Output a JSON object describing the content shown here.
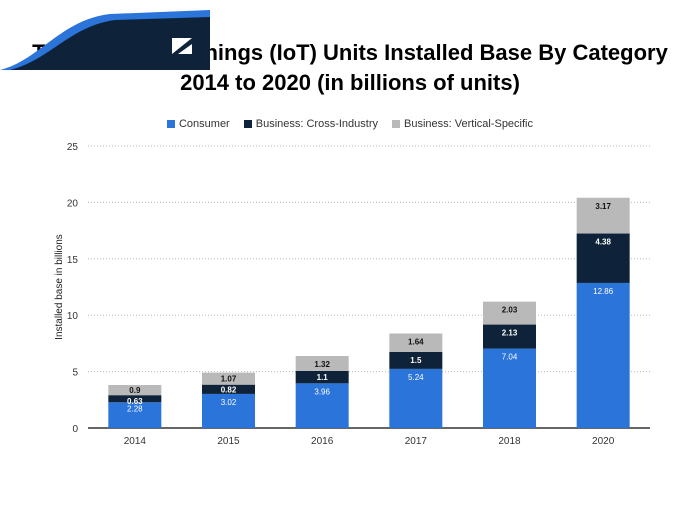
{
  "chart_data": {
    "type": "bar",
    "stacked": true,
    "title": "The Internet of Things (IoT) Units Installed Base By Category",
    "subtitle": "2014 to 2020 (in billions of units)",
    "xlabel": "",
    "ylabel": "Installed base in billions",
    "ylim": [
      0,
      25
    ],
    "yticks": [
      "0",
      "5",
      "10",
      "15",
      "20",
      "25"
    ],
    "grid": true,
    "legend_position": "top-center",
    "categories": [
      "2014",
      "2015",
      "2016",
      "2017",
      "2018",
      "2020"
    ],
    "series": [
      {
        "name": "Consumer",
        "color": "#2b74d9",
        "label_color": "#ffffff",
        "values": [
          2.28,
          3.02,
          3.96,
          5.24,
          7.04,
          12.86
        ],
        "labels": [
          "2.28",
          "3.02",
          "3.96",
          "5.24",
          "7.04",
          "12.86"
        ]
      },
      {
        "name": "Business: Cross-Industry",
        "color": "#0e2339",
        "label_color": "#ffffff",
        "values": [
          0.63,
          0.82,
          1.1,
          1.5,
          2.13,
          4.38
        ],
        "labels": [
          "0.63",
          "0.82",
          "1.1",
          "1.5",
          "2.13",
          "4.38"
        ]
      },
      {
        "name": "Business: Vertical-Specific",
        "color": "#b9b9b9",
        "label_color": "#111111",
        "values": [
          0.9,
          1.07,
          1.32,
          1.64,
          2.03,
          3.17
        ],
        "labels": [
          "0.9",
          "1.07",
          "1.32",
          "1.64",
          "2.03",
          "3.17"
        ]
      }
    ]
  },
  "brand": "statista"
}
